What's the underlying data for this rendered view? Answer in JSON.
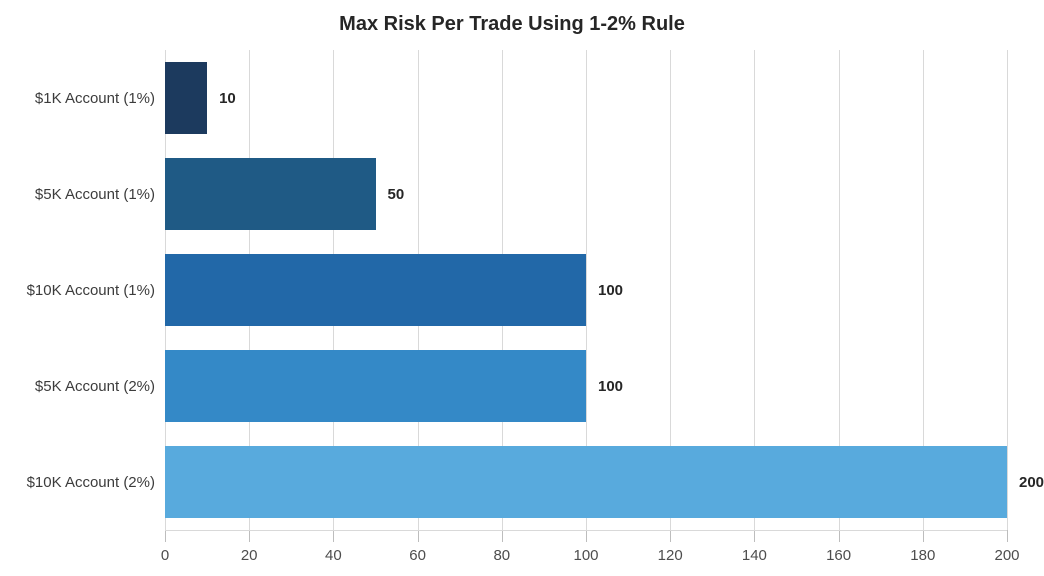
{
  "chart_data": {
    "type": "bar",
    "orientation": "horizontal",
    "title": "Max Risk Per Trade Using 1-2% Rule",
    "categories": [
      "$1K Account (1%)",
      "$5K Account (1%)",
      "$10K Account (1%)",
      "$5K Account (2%)",
      "$10K Account (2%)"
    ],
    "values": [
      10,
      50,
      100,
      100,
      200
    ],
    "value_labels": [
      "10",
      "50",
      "100",
      "100",
      "200"
    ],
    "bar_colors": [
      "#1c3a5e",
      "#1f5a85",
      "#2268a8",
      "#3489c7",
      "#58aadd"
    ],
    "xlim": [
      0,
      200
    ],
    "xticks": [
      0,
      20,
      40,
      60,
      80,
      100,
      120,
      140,
      160,
      180,
      200
    ],
    "xlabel": "",
    "ylabel": "",
    "grid": "vertical",
    "legend": "none",
    "colors": {
      "background": "#ffffff",
      "title": "#262626",
      "category_label": "#3c3c3c",
      "tick_label": "#4d4d4d",
      "value_label": "#262626",
      "gridline": "#d9d9d9",
      "tick_mark": "#bdbdbd"
    }
  }
}
